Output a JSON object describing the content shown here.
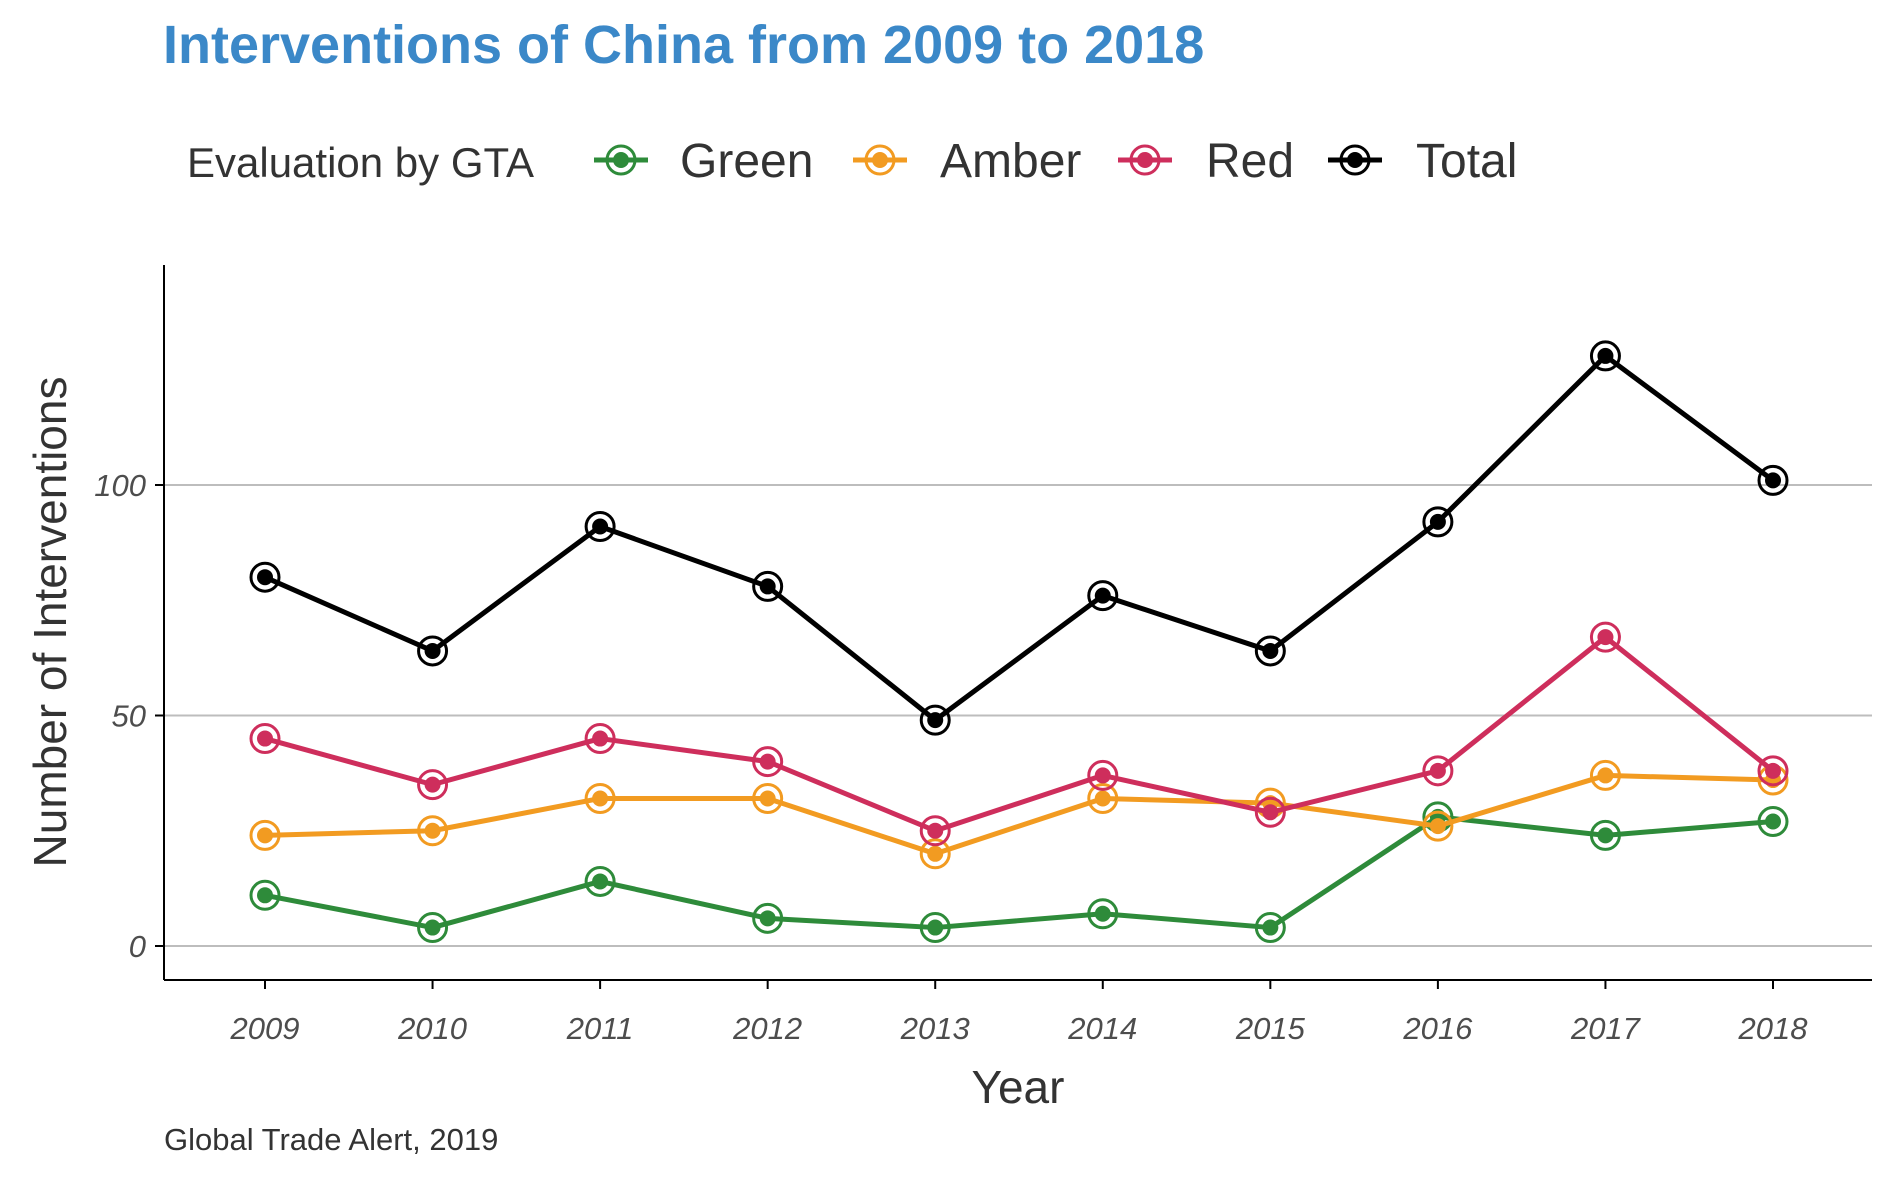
{
  "chart_data": {
    "type": "line",
    "title": "Interventions of China from 2009 to 2018",
    "xlabel": "Year",
    "ylabel": "Number of Interventions",
    "caption": "Global Trade Alert, 2019",
    "legend_title": "Evaluation by GTA",
    "legend_position": "top",
    "grid": "horizontal major",
    "x": [
      2009,
      2010,
      2011,
      2012,
      2013,
      2014,
      2015,
      2016,
      2017,
      2018
    ],
    "ylim": [
      -7,
      148
    ],
    "yticks": [
      0,
      50,
      100
    ],
    "series": [
      {
        "name": "Green",
        "color": "#2E8B3A",
        "values": [
          11,
          4,
          14,
          6,
          4,
          7,
          4,
          28,
          24,
          27
        ]
      },
      {
        "name": "Amber",
        "color": "#F29B21",
        "values": [
          24,
          25,
          32,
          32,
          20,
          32,
          31,
          26,
          37,
          36
        ]
      },
      {
        "name": "Red",
        "color": "#CE2E5C",
        "values": [
          45,
          35,
          45,
          40,
          25,
          37,
          29,
          38,
          67,
          38
        ]
      },
      {
        "name": "Total",
        "color": "#000000",
        "values": [
          80,
          64,
          91,
          78,
          49,
          76,
          64,
          92,
          128,
          101
        ]
      }
    ]
  }
}
